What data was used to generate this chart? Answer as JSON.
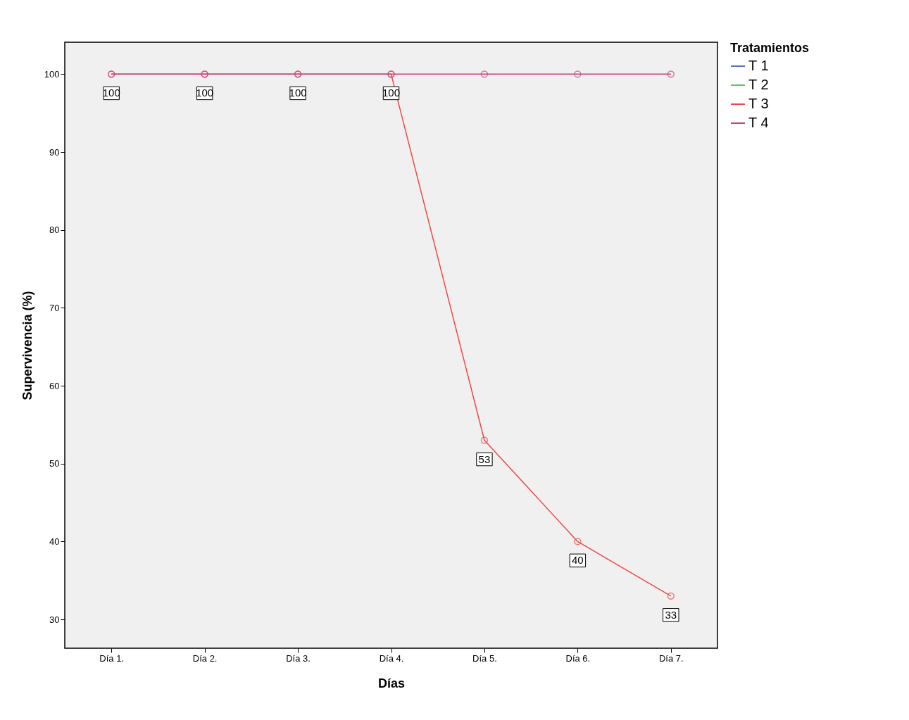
{
  "chart_data": {
    "type": "line",
    "xlabel": "Días",
    "ylabel": "Supervivencia (%)",
    "legend_title": "Tratamientos",
    "categories": [
      "Día 1.",
      "Día 2.",
      "Día 3.",
      "Día 4.",
      "Día 5.",
      "Día 6.",
      "Día 7."
    ],
    "series": [
      {
        "name": "T 1",
        "color": "#5a6fc8",
        "values": [
          null,
          null,
          null,
          null,
          null,
          null,
          null
        ]
      },
      {
        "name": "T 2",
        "color": "#55c855",
        "values": [
          null,
          null,
          null,
          null,
          null,
          null,
          null
        ]
      },
      {
        "name": "T 3",
        "color": "#f04848",
        "values": [
          100,
          100,
          100,
          100,
          53,
          40,
          33
        ],
        "value_labels": [
          "100",
          "100",
          "100",
          "100",
          "53",
          "40",
          "33"
        ]
      },
      {
        "name": "T 4",
        "color": "#c8407a",
        "values": [
          100,
          100,
          100,
          100,
          100,
          100,
          100
        ]
      }
    ],
    "ylim": [
      26.3,
      104.1
    ],
    "yticks": [
      30,
      40,
      50,
      60,
      70,
      80,
      90,
      100
    ],
    "grid": false,
    "legend": "right",
    "marker": "circle",
    "line_style": "solid"
  }
}
